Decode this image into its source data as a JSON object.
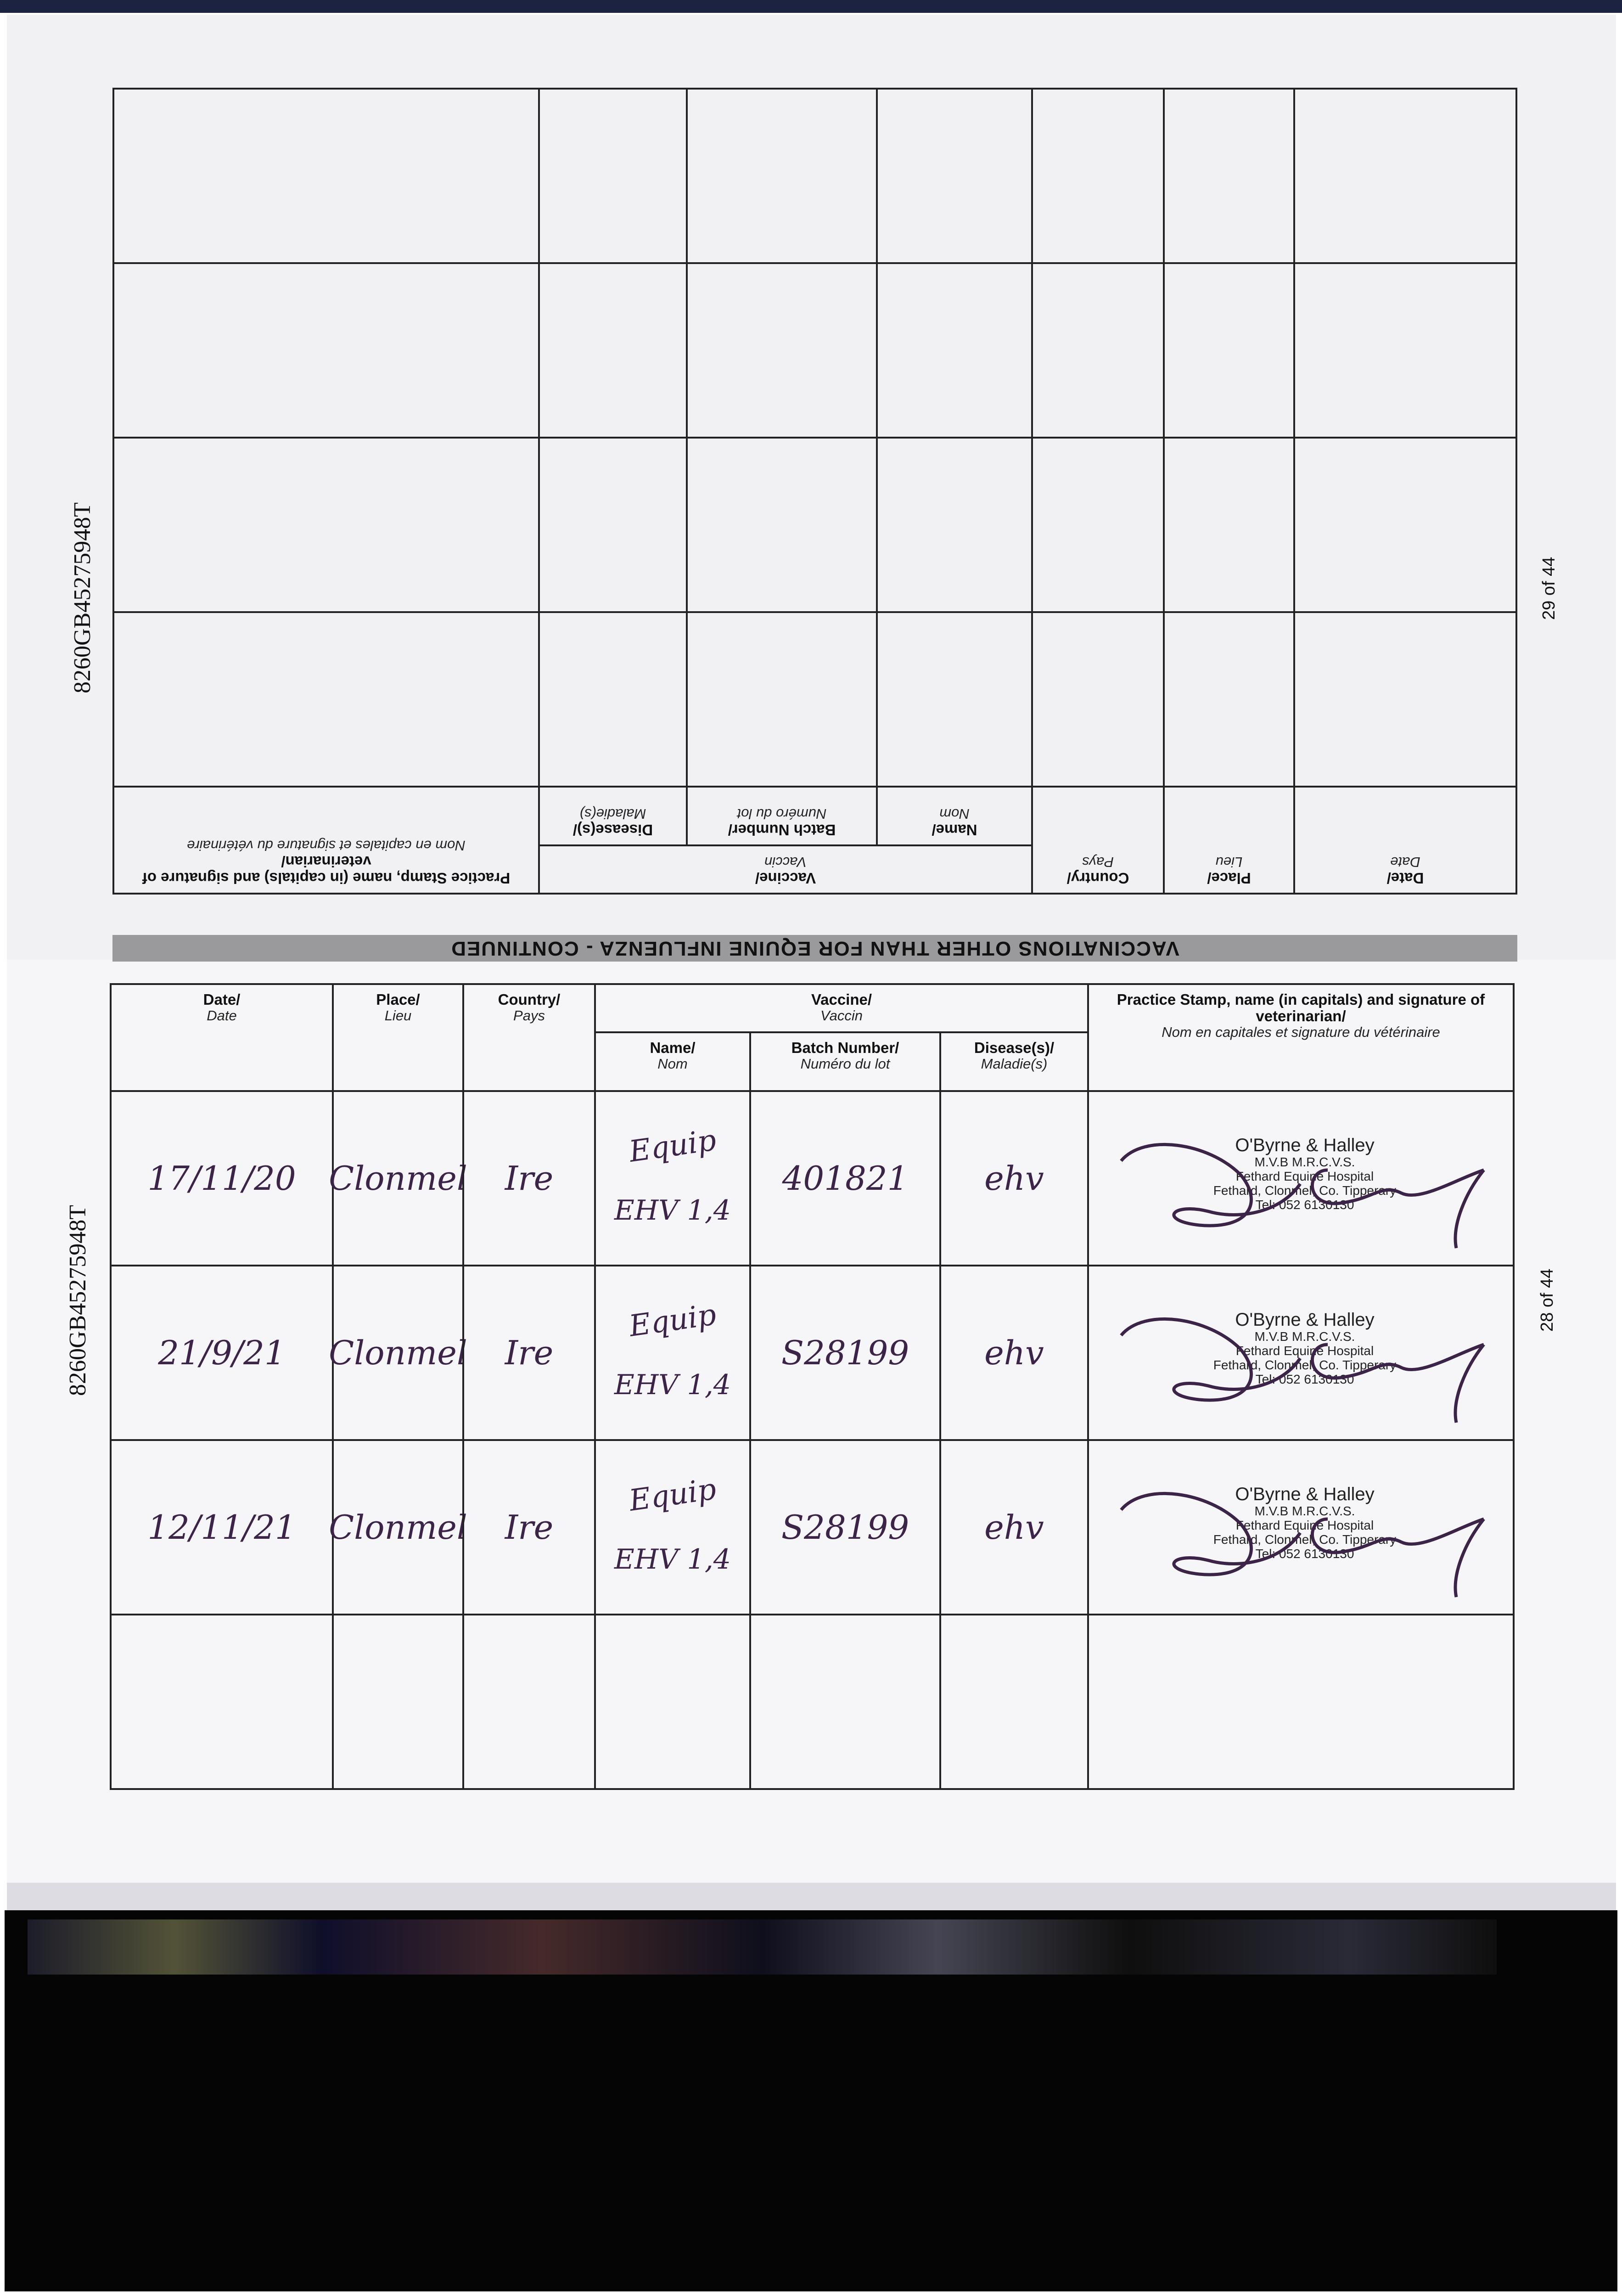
{
  "document_code": "8260GB45275948T",
  "upper_page": {
    "page_number": "29 of 44",
    "banner": "VACCINATIONS OTHER THAN FOR EQUINE INFLUENZA - CONTINUED"
  },
  "lower_page": {
    "page_number": "28 of 44"
  },
  "headers": {
    "date": {
      "en": "Date/",
      "fr": "Date"
    },
    "place": {
      "en": "Place/",
      "fr": "Lieu"
    },
    "country": {
      "en": "Country/",
      "fr": "Pays"
    },
    "vaccine": {
      "en": "Vaccine/",
      "fr": "Vaccin"
    },
    "name": {
      "en": "Name/",
      "fr": "Nom"
    },
    "batch": {
      "en": "Batch Number/",
      "fr": "Numéro du lot"
    },
    "disease": {
      "en": "Disease(s)/",
      "fr": "Maladie(s)"
    },
    "stamp": {
      "en": "Practice Stamp, name (in capitals) and signature of veterinarian/",
      "fr": "Nom en capitales et signature du vétérinaire"
    }
  },
  "entries": [
    {
      "date": "17/11/20",
      "place": "Clonmel",
      "country": "Ire",
      "name_line1": "Equip",
      "name_line2": "EHV 1,4",
      "batch": "401821",
      "disease": "ehv"
    },
    {
      "date": "21/9/21",
      "place": "Clonmel",
      "country": "Ire",
      "name_line1": "Equip",
      "name_line2": "EHV 1,4",
      "batch": "S28199",
      "disease": "ehv"
    },
    {
      "date": "12/11/21",
      "place": "Clonmel",
      "country": "Ire",
      "name_line1": "Equip",
      "name_line2": "EHV 1,4",
      "batch": "S28199",
      "disease": "ehv"
    }
  ],
  "stamp": {
    "name": "O'Byrne & Halley",
    "quals": "M.V.B M.R.C.V.S.",
    "hospital": "Fethard Equine Hospital",
    "address": "Fethard, Clonmel, Co. Tipperary",
    "tel": "Tel: 052 6130130"
  },
  "colors": {
    "ink": "#3b2447",
    "paper": "#f4f4f6",
    "banner": "#9a9a9c"
  }
}
